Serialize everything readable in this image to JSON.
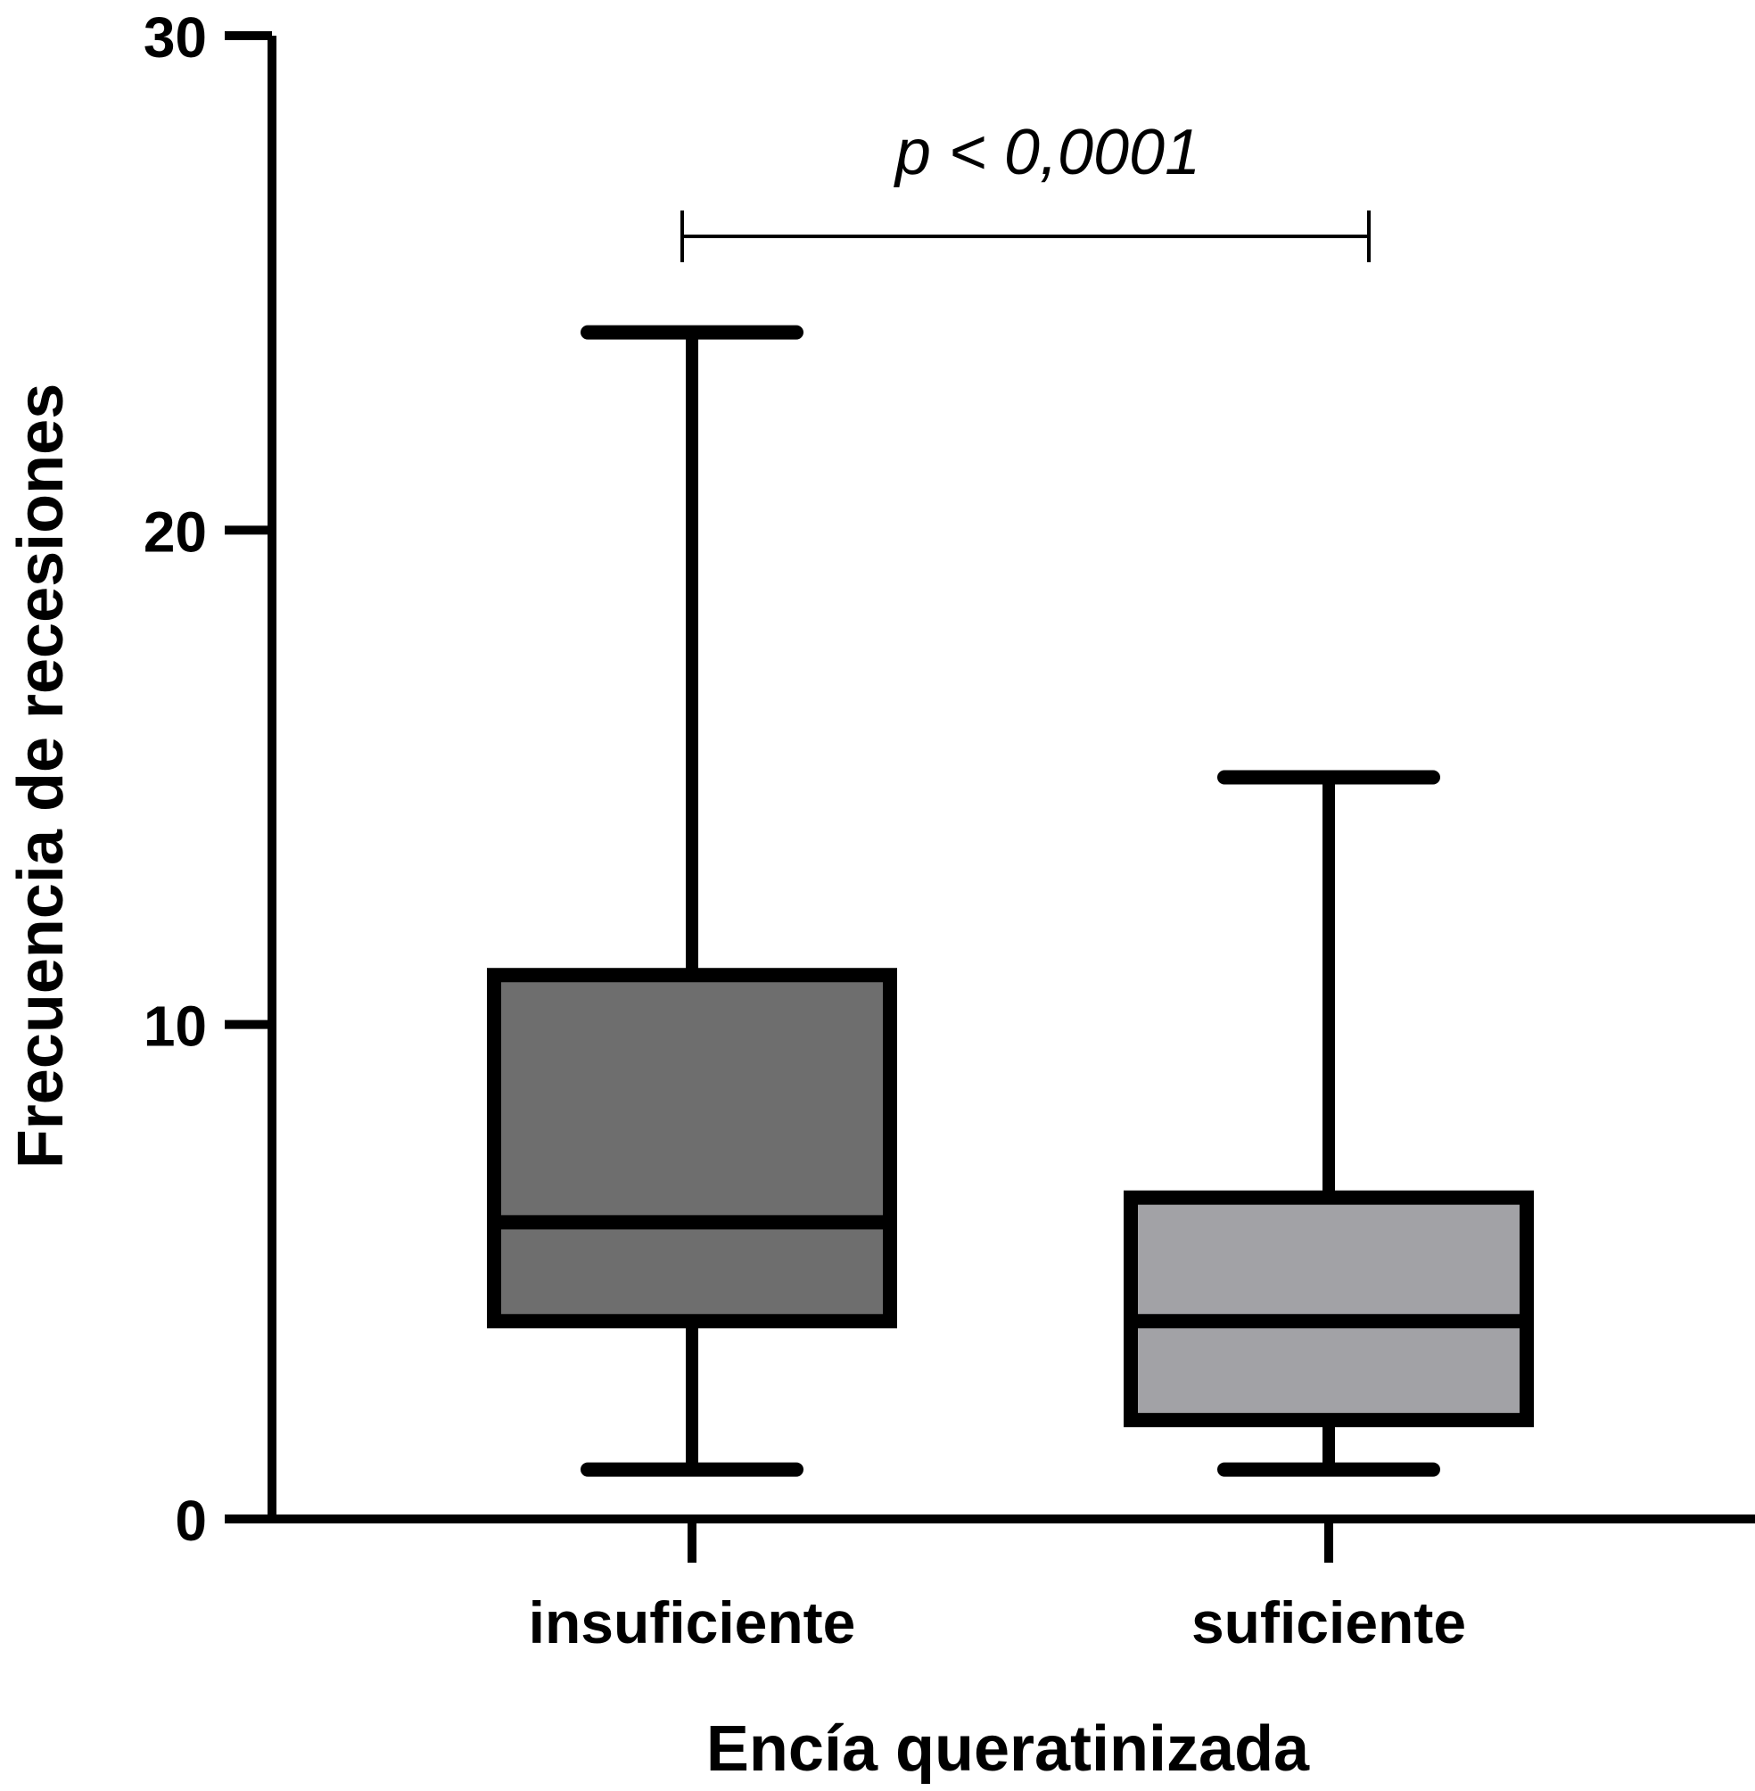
{
  "chart_data": {
    "type": "boxplot",
    "categories": [
      "insuficiente",
      "suficiente"
    ],
    "boxes": [
      {
        "category": "insuficiente",
        "min": 1,
        "q1": 4,
        "median": 6,
        "q3": 11,
        "max": 24,
        "color": "#6e6e6e"
      },
      {
        "category": "suficiente",
        "min": 1,
        "q1": 2,
        "median": 4,
        "q3": 6.5,
        "max": 15,
        "color": "#a2a2a6"
      }
    ],
    "xlabel": "Encía queratinizada",
    "ylabel": "Frecuencia de recesiones",
    "ylim": [
      0,
      30
    ],
    "yticks": [
      "0",
      "10",
      "20",
      "30"
    ],
    "grid": false,
    "annotation": {
      "text": "p < 0,0001",
      "from": "insuficiente",
      "to": "suficiente"
    }
  }
}
